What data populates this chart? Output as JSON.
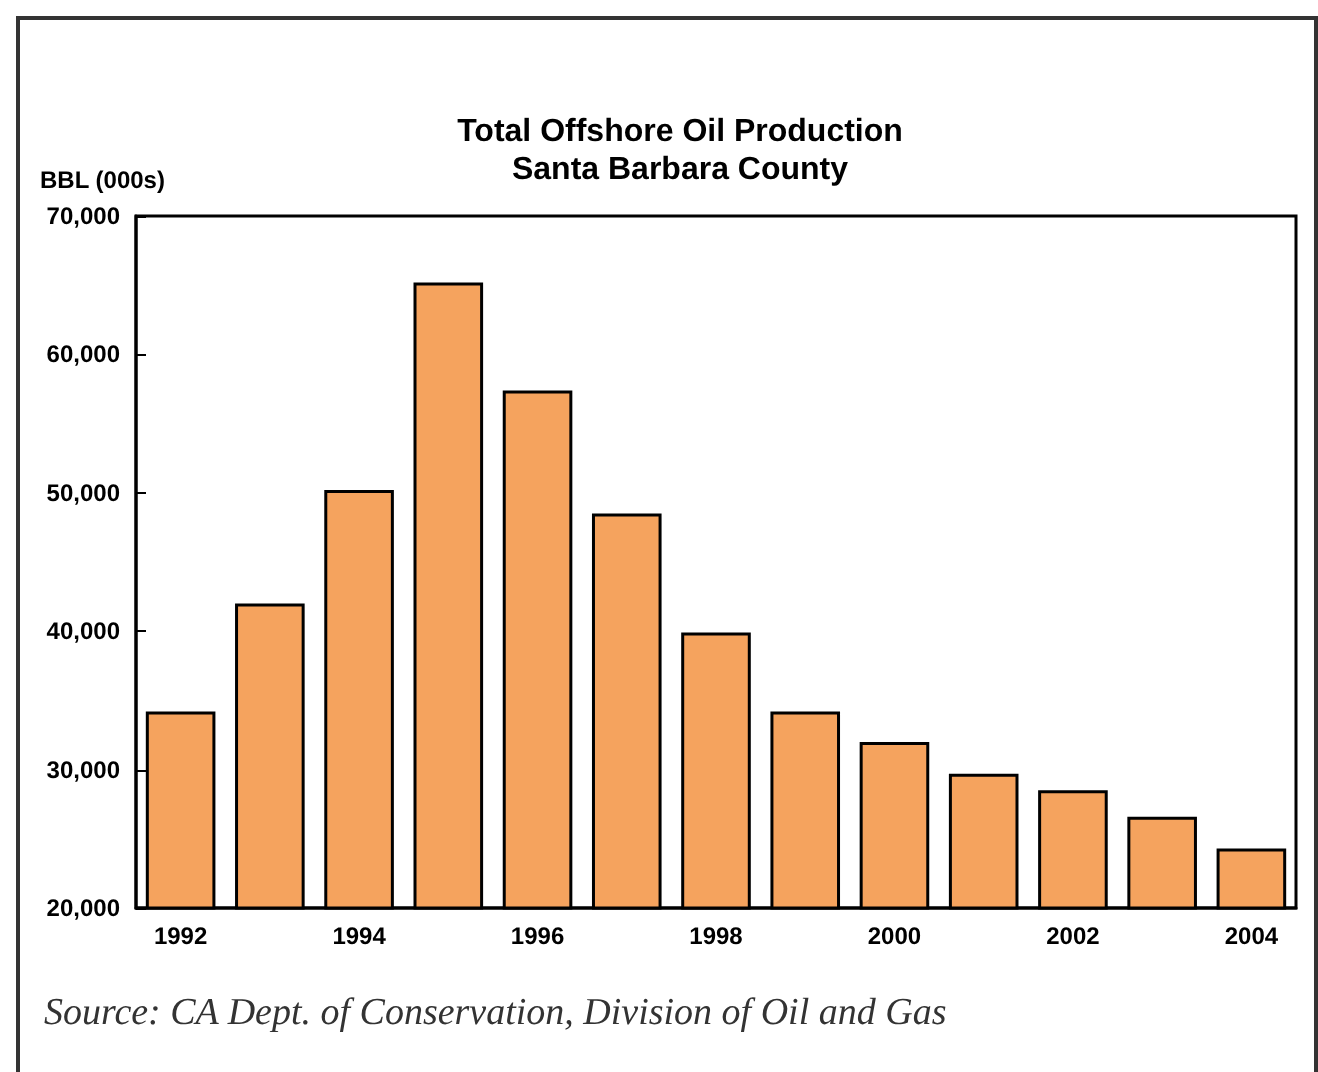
{
  "chart_data": {
    "type": "bar",
    "title": "Total Offshore Oil Production",
    "subtitle": "Santa Barbara County",
    "ylabel": "BBL (000s)",
    "categories": [
      "1992",
      null,
      "1994",
      null,
      "1996",
      null,
      "1998",
      null,
      "2000",
      null,
      "2002",
      null,
      "2004"
    ],
    "values": [
      34200,
      42000,
      50200,
      65200,
      57400,
      48500,
      39900,
      34200,
      32000,
      29700,
      28500,
      26600,
      24300
    ],
    "color": "#f5a35e",
    "ylim": [
      20000,
      70000
    ],
    "yticks": [
      {
        "value": 20000,
        "label": "20,000"
      },
      {
        "value": 30000,
        "label": "30,000"
      },
      {
        "value": 40000,
        "label": "40,000"
      },
      {
        "value": 50000,
        "label": "50,000"
      },
      {
        "value": 60000,
        "label": "60,000"
      },
      {
        "value": 70000,
        "label": "70,000"
      }
    ],
    "grid": false,
    "annotations": [
      "Source: CA Dept. of Conservation, Division of Oil and Gas"
    ]
  }
}
